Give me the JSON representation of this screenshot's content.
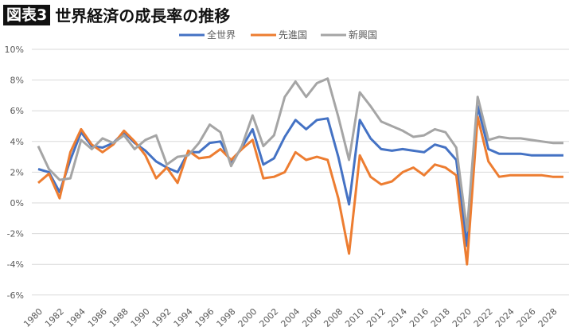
{
  "header": {
    "badge": "図表3",
    "title": "世界経済の成長率の推移"
  },
  "chart_data": {
    "type": "line",
    "title": "世界経済の成長率の推移",
    "xlabel": "",
    "ylabel": "",
    "ylim": [
      -6,
      10
    ],
    "yticks": [
      "-6%",
      "-4%",
      "-2%",
      "0%",
      "2%",
      "4%",
      "6%",
      "8%",
      "10%"
    ],
    "ytick_values": [
      -6,
      -4,
      -2,
      0,
      2,
      4,
      6,
      8,
      10
    ],
    "x": [
      1980,
      1981,
      1982,
      1983,
      1984,
      1985,
      1986,
      1987,
      1988,
      1989,
      1990,
      1991,
      1992,
      1993,
      1994,
      1995,
      1996,
      1997,
      1998,
      1999,
      2000,
      2001,
      2002,
      2003,
      2004,
      2005,
      2006,
      2007,
      2008,
      2009,
      2010,
      2011,
      2012,
      2013,
      2014,
      2015,
      2016,
      2017,
      2018,
      2019,
      2020,
      2021,
      2022,
      2023,
      2024,
      2025,
      2026,
      2027,
      2028,
      2029
    ],
    "xticks": [
      "1980",
      "1982",
      "1984",
      "1986",
      "1988",
      "1990",
      "1992",
      "1994",
      "1996",
      "1998",
      "2000",
      "2002",
      "2004",
      "2006",
      "2008",
      "2010",
      "2012",
      "2014",
      "2016",
      "2018",
      "2020",
      "2022",
      "2024",
      "2026",
      "2028"
    ],
    "grid": true,
    "legend": "top-right",
    "series": [
      {
        "name": "全世界",
        "color": "#4472C4",
        "values": [
          2.2,
          2.0,
          0.7,
          2.8,
          4.6,
          3.7,
          3.6,
          3.9,
          4.6,
          3.9,
          3.4,
          2.7,
          2.3,
          2.0,
          3.3,
          3.3,
          3.9,
          4.0,
          2.6,
          3.6,
          4.8,
          2.5,
          2.9,
          4.3,
          5.4,
          4.8,
          5.4,
          5.5,
          3.0,
          -0.1,
          5.4,
          4.2,
          3.5,
          3.4,
          3.5,
          3.4,
          3.3,
          3.8,
          3.6,
          2.8,
          -2.8,
          6.3,
          3.5,
          3.2,
          3.2,
          3.2,
          3.1,
          3.1,
          3.1,
          3.1
        ]
      },
      {
        "name": "先進国",
        "color": "#ED7D31",
        "values": [
          1.3,
          1.9,
          0.3,
          3.3,
          4.8,
          3.8,
          3.3,
          3.8,
          4.7,
          4.0,
          3.1,
          1.6,
          2.3,
          1.3,
          3.4,
          2.9,
          3.0,
          3.5,
          2.8,
          3.5,
          4.1,
          1.6,
          1.7,
          2.0,
          3.3,
          2.8,
          3.0,
          2.8,
          0.3,
          -3.3,
          3.1,
          1.7,
          1.2,
          1.4,
          2.0,
          2.3,
          1.8,
          2.5,
          2.3,
          1.8,
          -4.0,
          5.6,
          2.7,
          1.7,
          1.8,
          1.8,
          1.8,
          1.8,
          1.7,
          1.7
        ]
      },
      {
        "name": "新興国",
        "color": "#A5A5A5",
        "values": [
          3.7,
          2.2,
          1.5,
          1.6,
          4.1,
          3.5,
          4.2,
          3.9,
          4.4,
          3.5,
          4.1,
          4.4,
          2.5,
          3.0,
          3.1,
          3.9,
          5.1,
          4.6,
          2.4,
          3.7,
          5.7,
          3.7,
          4.4,
          6.9,
          7.9,
          6.9,
          7.8,
          8.1,
          5.6,
          2.8,
          7.2,
          6.3,
          5.3,
          5.0,
          4.7,
          4.3,
          4.4,
          4.8,
          4.6,
          3.6,
          -1.8,
          6.9,
          4.1,
          4.3,
          4.2,
          4.2,
          4.1,
          4.0,
          3.9,
          3.9
        ]
      }
    ]
  }
}
